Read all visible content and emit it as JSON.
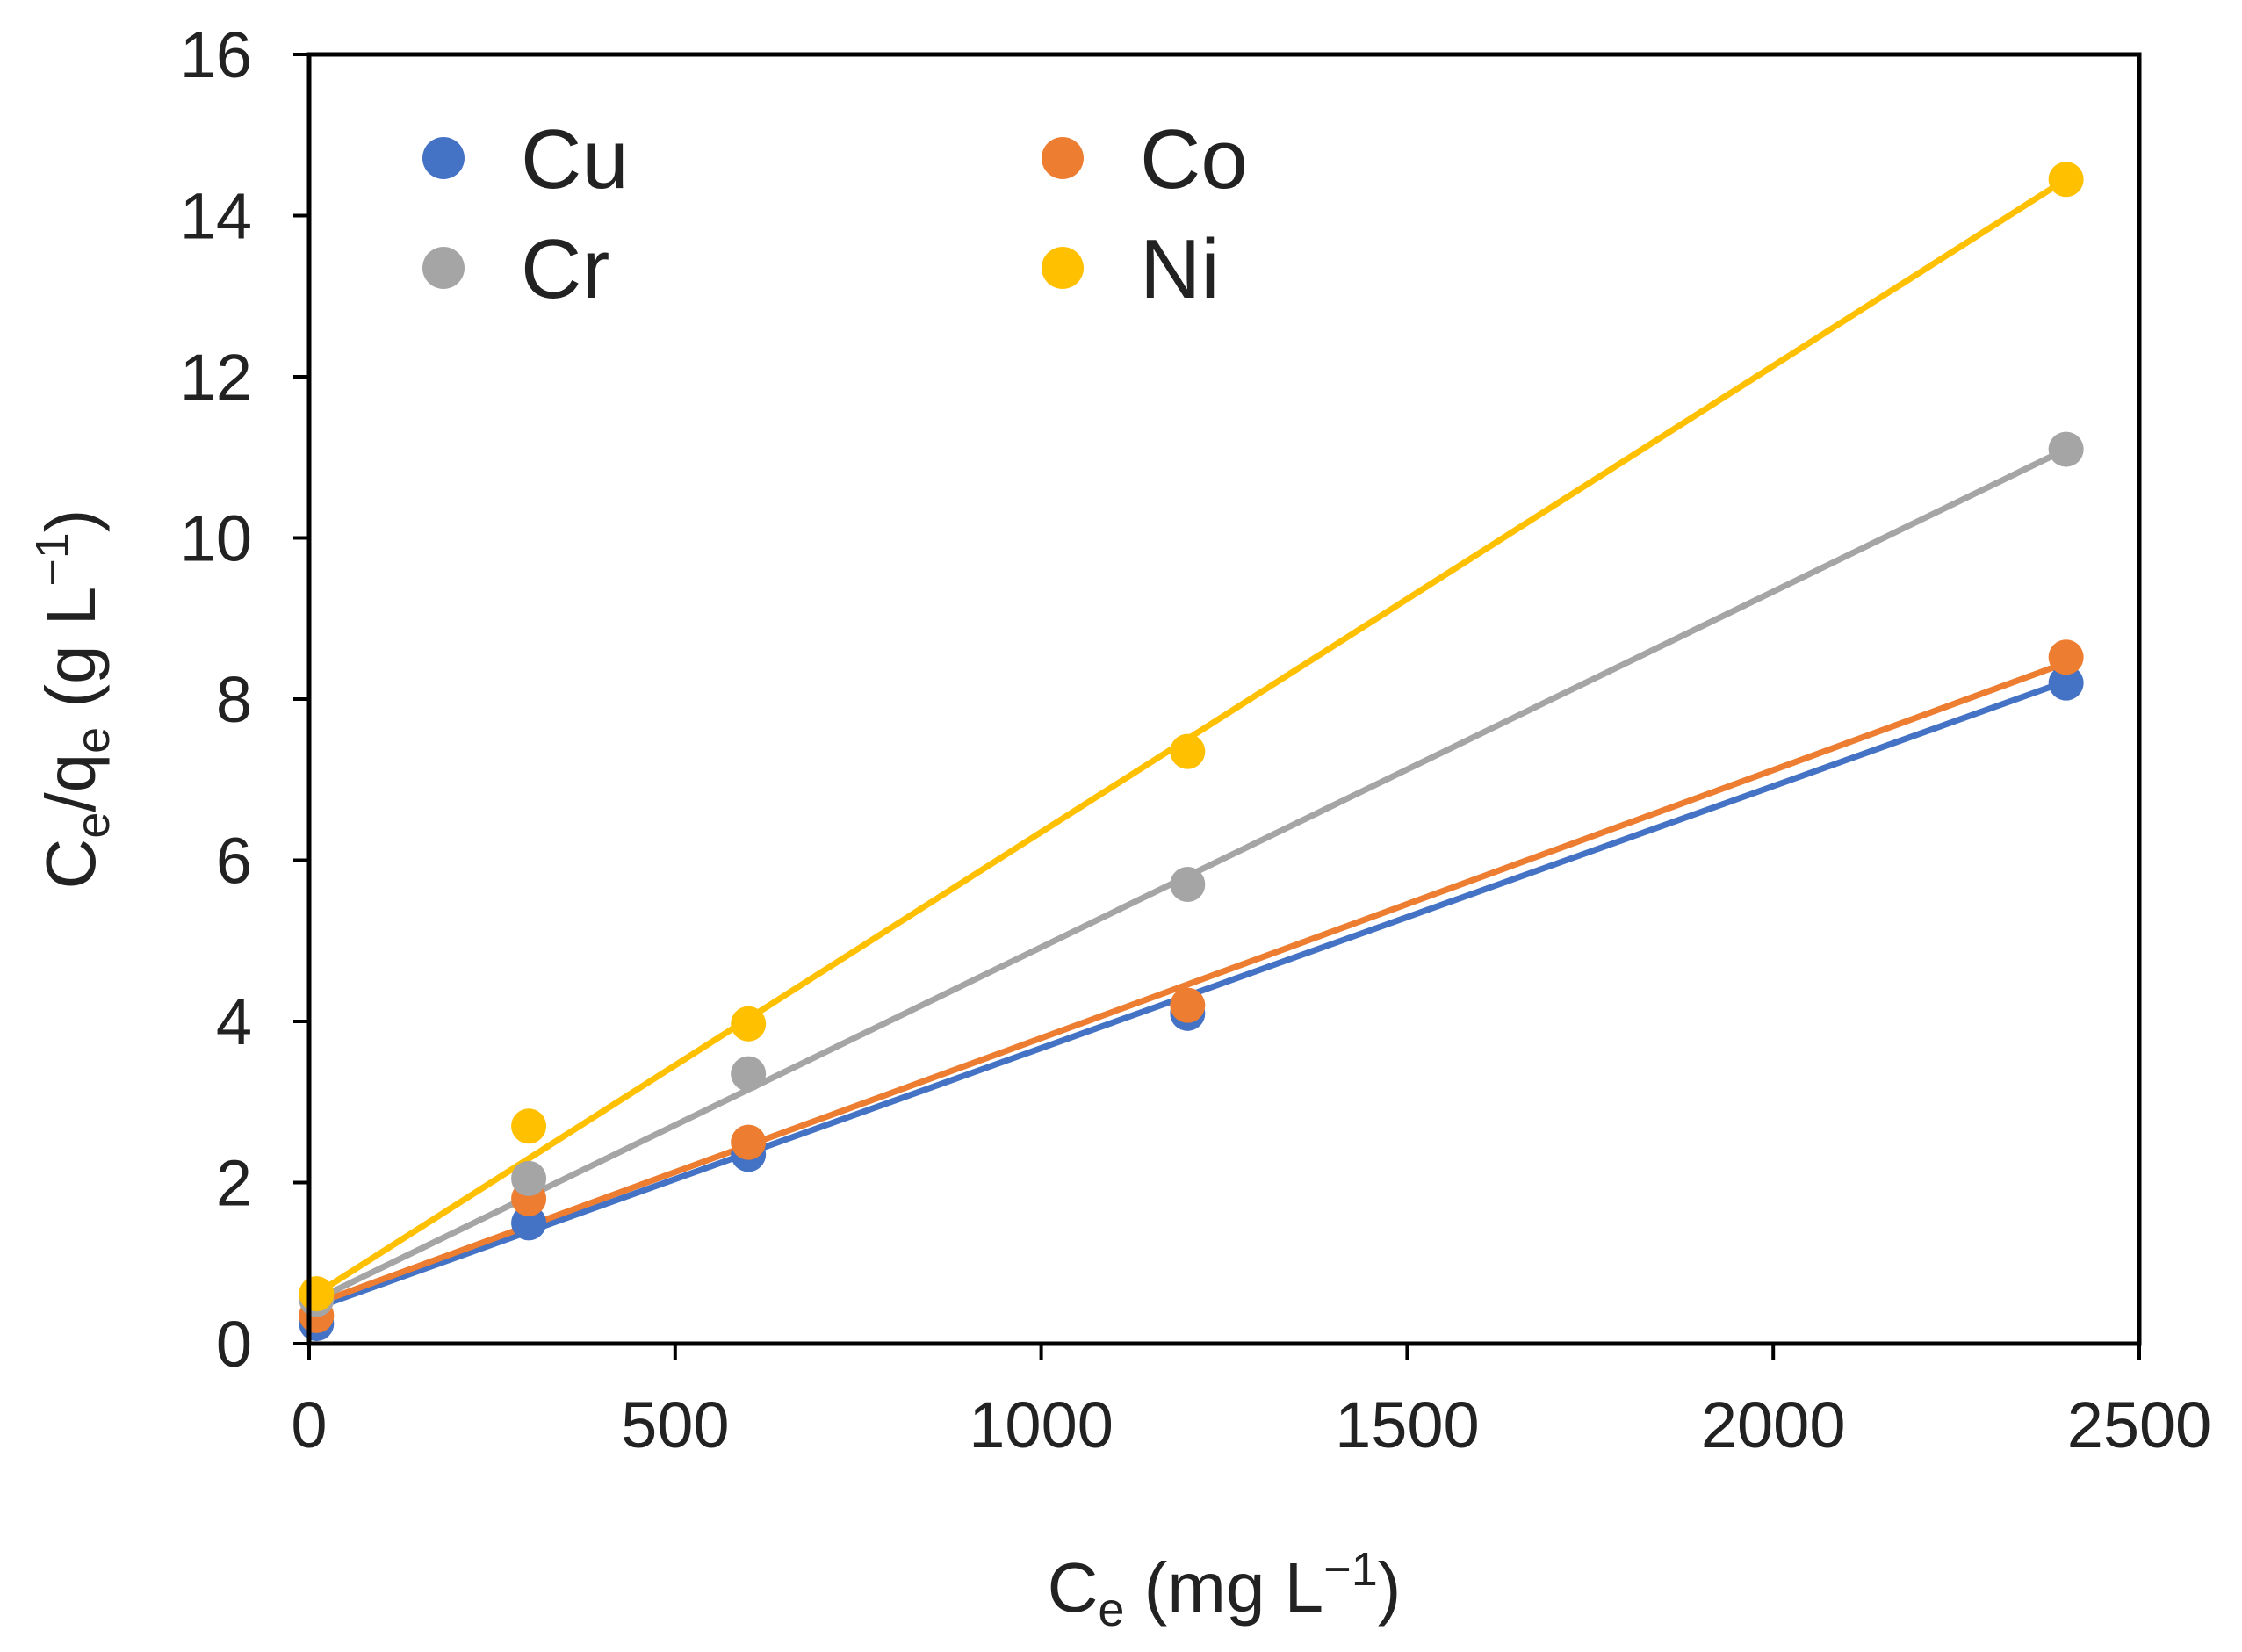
{
  "chart_data": {
    "type": "scatter",
    "title": "",
    "xlabel": "Cₑ (mg L⁻¹)",
    "xlabel_parts": {
      "main": "C",
      "sub": "e",
      "rest": " (mg L",
      "sup": "−1",
      "end": ")"
    },
    "ylabel": "Cₑ/qₑ (g L⁻¹)",
    "ylabel_parts": {
      "main": "C",
      "sub1": "e",
      "mid": "/q",
      "sub2": "e",
      "rest": " (g L",
      "sup": "−1",
      "end": ")"
    },
    "xlim": [
      0,
      2500
    ],
    "ylim": [
      0,
      16
    ],
    "xticks": [
      0,
      500,
      1000,
      1500,
      2000,
      2500
    ],
    "xtick_labels": [
      "0",
      "500",
      "1000",
      "1500",
      "2000",
      "2500"
    ],
    "yticks": [
      0,
      2,
      4,
      6,
      8,
      10,
      12,
      14,
      16
    ],
    "ytick_labels": [
      "0",
      "2",
      "4",
      "6",
      "8",
      "10",
      "12",
      "14",
      "16"
    ],
    "grid": false,
    "legend_placement": "top-left",
    "series": [
      {
        "name": "Cu",
        "color": "#4472C4",
        "x": [
          10,
          300,
          600,
          1200,
          2400
        ],
        "y": [
          0.25,
          1.5,
          2.35,
          4.1,
          8.2
        ],
        "fit_x": [
          10,
          2400
        ],
        "fit_y": [
          0.45,
          8.22
        ]
      },
      {
        "name": "Co",
        "color": "#ED7D31",
        "x": [
          10,
          300,
          600,
          1200,
          2400
        ],
        "y": [
          0.35,
          1.8,
          2.5,
          4.2,
          8.52
        ],
        "fit_x": [
          10,
          2400
        ],
        "fit_y": [
          0.5,
          8.45
        ]
      },
      {
        "name": "Cr",
        "color": "#A5A5A5",
        "x": [
          10,
          300,
          600,
          1200,
          2400
        ],
        "y": [
          0.55,
          2.05,
          3.35,
          5.7,
          11.1
        ],
        "fit_x": [
          10,
          2400
        ],
        "fit_y": [
          0.55,
          11.1
        ]
      },
      {
        "name": "Ni",
        "color": "#FFC000",
        "x": [
          10,
          300,
          600,
          1200,
          2400
        ],
        "y": [
          0.62,
          2.7,
          3.97,
          7.35,
          14.45
        ],
        "fit_x": [
          10,
          2400
        ],
        "fit_y": [
          0.62,
          14.45
        ]
      }
    ],
    "legend": [
      {
        "label": "Cu",
        "color": "#4472C4"
      },
      {
        "label": "Co",
        "color": "#ED7D31"
      },
      {
        "label": "Cr",
        "color": "#A5A5A5"
      },
      {
        "label": "Ni",
        "color": "#FFC000"
      }
    ]
  }
}
